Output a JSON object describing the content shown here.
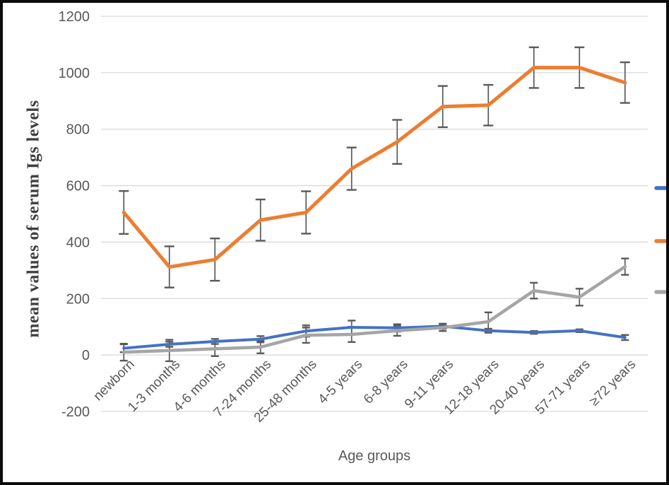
{
  "figure": {
    "background": "#ffffff",
    "border_color": "#0c0c0c"
  },
  "chart_data": {
    "type": "line",
    "title": "",
    "xlabel": "Age groups",
    "ylabel": "mean values of serum Igs levels",
    "categories": [
      "newborn",
      "1-3 months",
      "4-6 months",
      "7-24 months",
      "25-48 months",
      "4-5 years",
      "6-8 years",
      "9-11 years",
      "12-18 years",
      "20-40 years",
      "57-71 years",
      "≥72 years"
    ],
    "y_ticks": [
      -200,
      0,
      200,
      400,
      600,
      800,
      1000,
      1200
    ],
    "ylim": [
      -200,
      1200
    ],
    "grid": "horizontal",
    "gridline_color": "#d9d9d9",
    "tick_label_color": "#595959",
    "error_bar_color": "#595959",
    "series": [
      {
        "name": "blue",
        "color": "#4472c4",
        "values": [
          24,
          38,
          48,
          56,
          85,
          98,
          96,
          102,
          86,
          80,
          86,
          62
        ],
        "errors": [
          14,
          9,
          9,
          11,
          20,
          24,
          13,
          9,
          7,
          5,
          5,
          9
        ]
      },
      {
        "name": "orange",
        "color": "#ed7d31",
        "values": [
          505,
          312,
          338,
          478,
          505,
          660,
          755,
          880,
          885,
          1018,
          1018,
          965
        ],
        "errors": [
          76,
          73,
          75,
          73,
          75,
          75,
          78,
          73,
          72,
          72,
          72,
          72
        ]
      },
      {
        "name": "gray",
        "color": "#a5a5a5",
        "values": [
          10,
          16,
          22,
          28,
          70,
          73,
          86,
          97,
          118,
          228,
          205,
          313
        ],
        "errors": [
          30,
          38,
          26,
          22,
          27,
          27,
          18,
          12,
          33,
          28,
          30,
          29
        ]
      }
    ],
    "legend": {
      "position": "right",
      "labels_visible": false,
      "note": "legend text cut off at image edge; only colored line markers visible",
      "marker_colors": [
        "#4472c4",
        "#ed7d31",
        "#a5a5a5"
      ]
    }
  }
}
